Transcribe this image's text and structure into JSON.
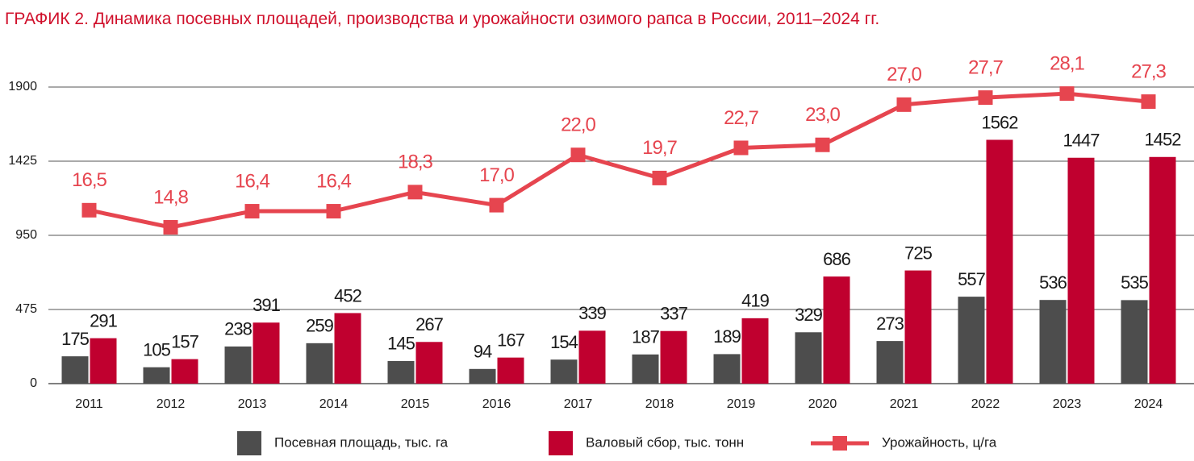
{
  "chart_data": {
    "type": "bar-line",
    "title": "ГРАФИК 2. Динамика посевных площадей, производства и урожайности озимого рапса в России, 2011–2024 гг.",
    "categories": [
      "2011",
      "2012",
      "2013",
      "2014",
      "2015",
      "2016",
      "2017",
      "2018",
      "2019",
      "2020",
      "2021",
      "2022",
      "2023",
      "2024"
    ],
    "series": [
      {
        "name": "Посевная площадь, тыс. га",
        "type": "bar",
        "color": "#4d4d4d",
        "values": [
          175,
          105,
          238,
          259,
          145,
          94,
          154,
          187,
          189,
          329,
          273,
          557,
          536,
          535
        ]
      },
      {
        "name": "Валовый сбор, тыс. тонн",
        "type": "bar",
        "color": "#c0002f",
        "values": [
          291,
          157,
          391,
          452,
          267,
          167,
          339,
          337,
          419,
          686,
          725,
          1562,
          1447,
          1452
        ]
      },
      {
        "name": "Урожайность, ц/га",
        "type": "line",
        "color": "#e6454f",
        "axis": "y2",
        "values": [
          16.5,
          14.8,
          16.4,
          16.4,
          18.3,
          17.0,
          22.0,
          19.7,
          22.7,
          23.0,
          27.0,
          27.7,
          28.1,
          27.3
        ],
        "value_labels": [
          "16,5",
          "14,8",
          "16,4",
          "16,4",
          "18,3",
          "17,0",
          "22,0",
          "19,7",
          "22,7",
          "23,0",
          "27,0",
          "27,7",
          "28,1",
          "27,3"
        ]
      }
    ],
    "ylim": [
      0,
      1900
    ],
    "yticks": [
      0,
      475,
      950,
      1425,
      1900
    ],
    "y2lim": [
      -0.75,
      28.75
    ],
    "grid": true,
    "legend": "bottom"
  }
}
